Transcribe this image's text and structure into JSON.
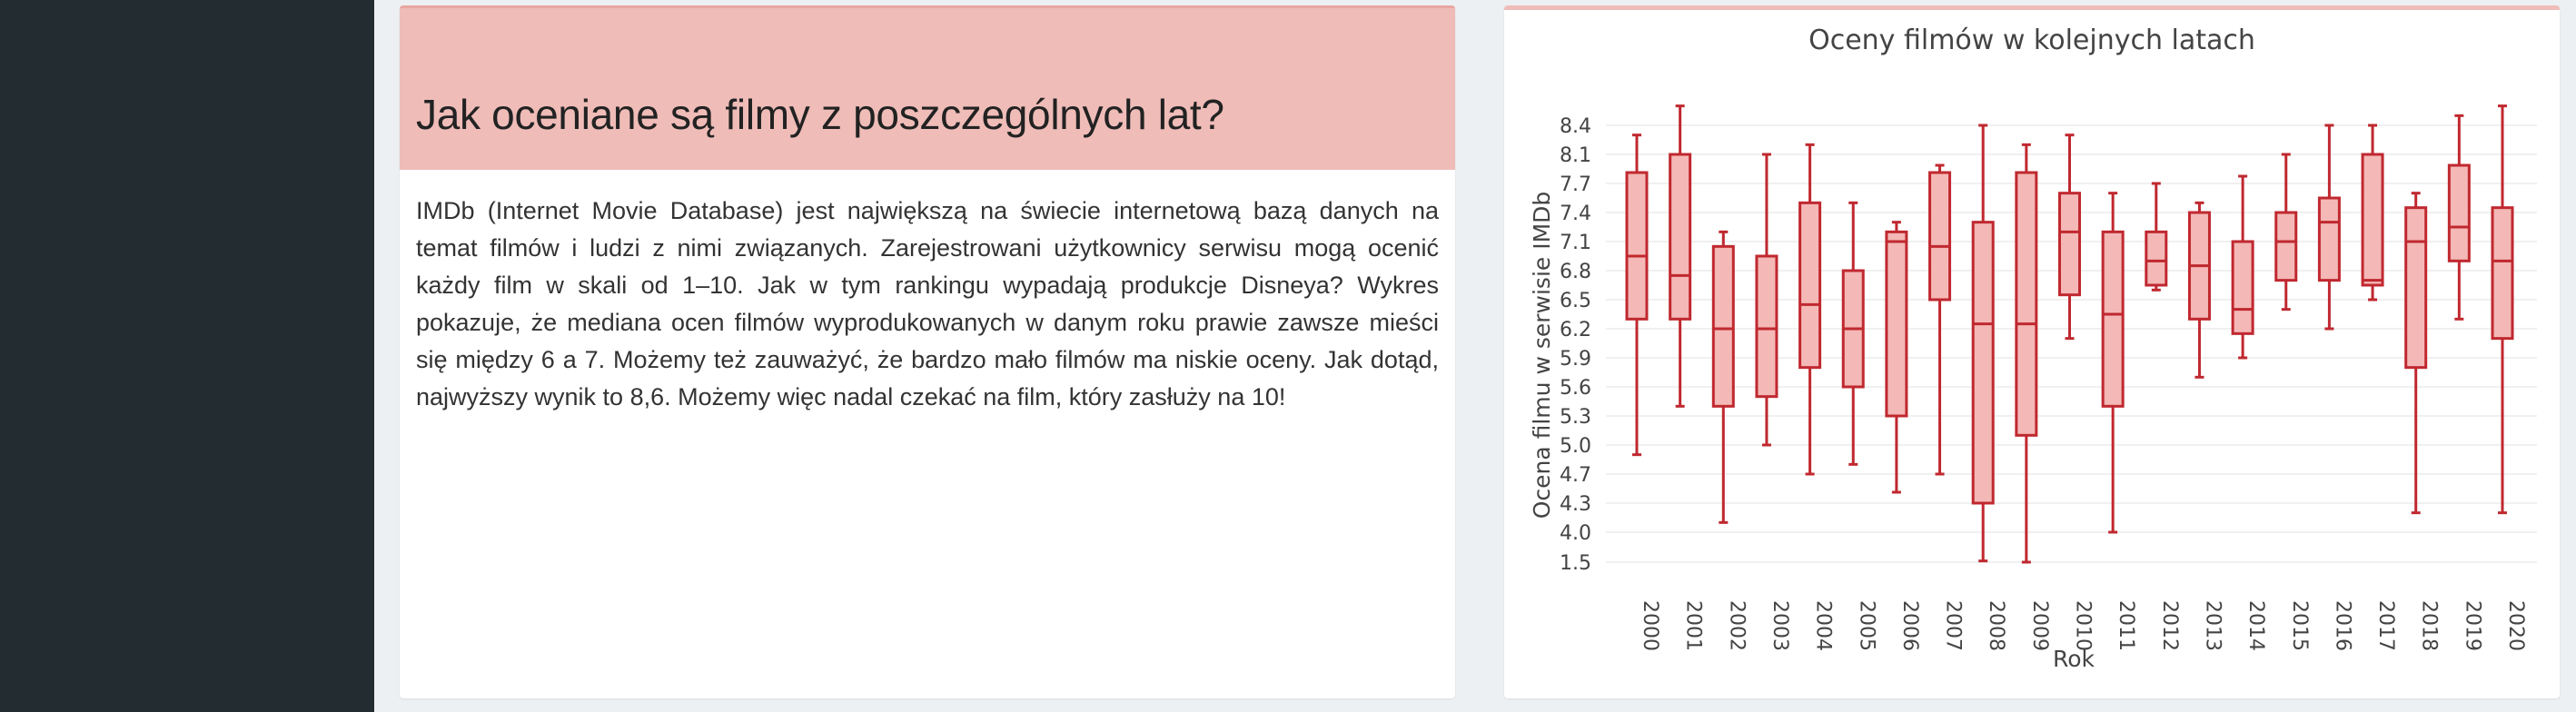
{
  "article": {
    "title": "Jak oceniane są filmy z poszczególnych lat?",
    "body": "IMDb (Internet Movie Database) jest największą na świecie internetową bazą danych na temat filmów i ludzi z nimi związanych. Zarejestrowani użytkownicy serwisu mogą ocenić każdy film w skali od 1–10. Jak w tym rankingu wypadają produkcje Disneya? Wykres pokazuje, że mediana ocen filmów wyprodukowanych w danym roku prawie zawsze mieści się między 6 a 7. Możemy też zauważyć, że bardzo mało filmów ma niskie oceny. Jak dotąd, najwyższy wynik to 8,6. Możemy więc nadal czekać na film, który zasłuży na 10!"
  },
  "colors": {
    "sidebar": "#232c31",
    "accent": "#efbcb8",
    "box_fill": "#f4b8b6",
    "box_stroke": "#c0282f"
  },
  "chart_data": {
    "type": "box",
    "title": "Oceny filmów w kolejnych latach",
    "xlabel": "Rok",
    "ylabel": "Ocena filmu w serwisie IMDb",
    "y_ticks": [
      "1.5",
      "4.0",
      "4.3",
      "4.7",
      "5.0",
      "5.3",
      "5.6",
      "5.9",
      "6.2",
      "6.5",
      "6.8",
      "7.1",
      "7.4",
      "7.7",
      "8.1",
      "8.4"
    ],
    "grid": true,
    "categories": [
      "2000",
      "2001",
      "2002",
      "2003",
      "2004",
      "2005",
      "2006",
      "2007",
      "2008",
      "2009",
      "2010",
      "2011",
      "2012",
      "2013",
      "2014",
      "2015",
      "2016",
      "2017",
      "2018",
      "2019",
      "2020"
    ],
    "boxes": [
      {
        "year": "2000",
        "min": 4.9,
        "q1": 6.3,
        "median": 6.95,
        "q3": 7.85,
        "max": 8.3
      },
      {
        "year": "2001",
        "min": 5.4,
        "q1": 6.3,
        "median": 6.75,
        "q3": 8.1,
        "max": 8.6
      },
      {
        "year": "2002",
        "min": 4.1,
        "q1": 5.4,
        "median": 6.2,
        "q3": 7.05,
        "max": 7.2
      },
      {
        "year": "2003",
        "min": 5.0,
        "q1": 5.5,
        "median": 6.2,
        "q3": 6.95,
        "max": 8.1
      },
      {
        "year": "2004",
        "min": 4.7,
        "q1": 5.8,
        "median": 6.45,
        "q3": 7.5,
        "max": 8.2
      },
      {
        "year": "2005",
        "min": 4.8,
        "q1": 5.6,
        "median": 6.2,
        "q3": 6.8,
        "max": 7.5
      },
      {
        "year": "2006",
        "min": 4.45,
        "q1": 5.3,
        "median": 7.1,
        "q3": 7.2,
        "max": 7.3
      },
      {
        "year": "2007",
        "min": 4.7,
        "q1": 6.5,
        "median": 7.05,
        "q3": 7.85,
        "max": 7.95
      },
      {
        "year": "2008",
        "min": 1.6,
        "q1": 4.3,
        "median": 6.25,
        "q3": 7.3,
        "max": 8.4
      },
      {
        "year": "2009",
        "min": 1.5,
        "q1": 5.1,
        "median": 6.25,
        "q3": 7.85,
        "max": 8.2
      },
      {
        "year": "2010",
        "min": 6.1,
        "q1": 6.55,
        "median": 7.2,
        "q3": 7.6,
        "max": 8.3
      },
      {
        "year": "2011",
        "min": 4.0,
        "q1": 5.4,
        "median": 6.35,
        "q3": 7.2,
        "max": 7.6
      },
      {
        "year": "2012",
        "min": 6.6,
        "q1": 6.65,
        "median": 6.9,
        "q3": 7.2,
        "max": 7.7
      },
      {
        "year": "2013",
        "min": 5.7,
        "q1": 6.3,
        "median": 6.85,
        "q3": 7.4,
        "max": 7.5
      },
      {
        "year": "2014",
        "min": 5.9,
        "q1": 6.15,
        "median": 6.4,
        "q3": 7.1,
        "max": 7.8
      },
      {
        "year": "2015",
        "min": 6.4,
        "q1": 6.7,
        "median": 7.1,
        "q3": 7.4,
        "max": 8.1
      },
      {
        "year": "2016",
        "min": 6.2,
        "q1": 6.7,
        "median": 7.3,
        "q3": 7.55,
        "max": 8.4
      },
      {
        "year": "2017",
        "min": 6.5,
        "q1": 6.65,
        "median": 6.7,
        "q3": 8.1,
        "max": 8.4
      },
      {
        "year": "2018",
        "min": 4.2,
        "q1": 5.8,
        "median": 7.1,
        "q3": 7.45,
        "max": 7.6
      },
      {
        "year": "2019",
        "min": 6.3,
        "q1": 6.9,
        "median": 7.25,
        "q3": 7.95,
        "max": 8.5
      },
      {
        "year": "2020",
        "min": 4.2,
        "q1": 6.1,
        "median": 6.9,
        "q3": 7.45,
        "max": 8.6
      }
    ]
  }
}
